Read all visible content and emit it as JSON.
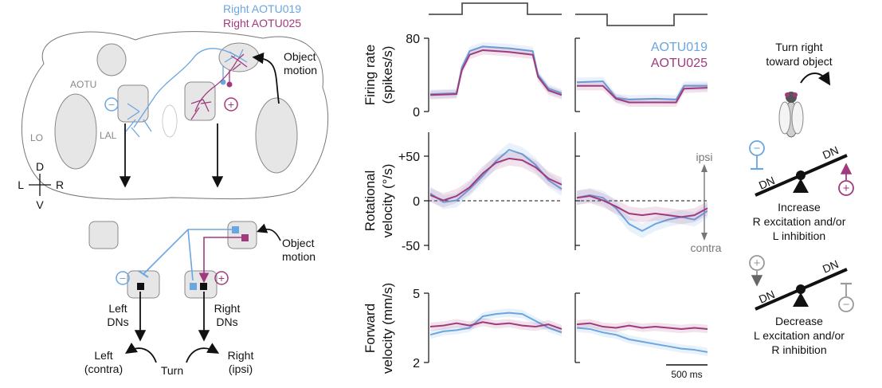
{
  "colors": {
    "aotu019": "#6aa6e0",
    "aotu025": "#a03a7d",
    "tissue": "#e6e6e6",
    "outline": "#777777",
    "grey": "#999999"
  },
  "brain": {
    "legend_aotu019": "Right AOTU019",
    "legend_aotu025": "Right AOTU025",
    "aotu": "AOTU",
    "lo": "LO",
    "lal": "LAL",
    "object_motion_1": "Object",
    "object_motion_2": "motion",
    "axis_d": "D",
    "axis_v": "V",
    "axis_l": "L",
    "axis_r": "R",
    "minus": "−",
    "plus": "+"
  },
  "circuit": {
    "object_motion_1": "Object",
    "object_motion_2": "motion",
    "left_dns_1": "Left",
    "left_dns_2": "DNs",
    "right_dns_1": "Right",
    "right_dns_2": "DNs",
    "left_contra_1": "Left",
    "left_contra_2": "(contra)",
    "turn": "Turn",
    "right_ipsi_1": "Right",
    "right_ipsi_2": "(ipsi)",
    "minus": "−",
    "plus": "+"
  },
  "chart_data": [
    {
      "type": "line",
      "panel": "firing-rate",
      "ylabel": [
        "Firing rate",
        "(spikes/s)"
      ],
      "yticks": [
        "80",
        "0"
      ],
      "ylim": [
        0,
        80
      ],
      "legend": [
        "AOTU019",
        "AOTU025"
      ],
      "legend_position": "top-right",
      "left_condition": {
        "x": [
          0,
          0.2,
          0.24,
          0.3,
          0.4,
          0.6,
          0.78,
          0.82,
          0.9,
          1.0
        ],
        "series": [
          {
            "name": "AOTU019",
            "values": [
              19,
              20,
              48,
              66,
              71,
              69,
              66,
              40,
              25,
              20
            ]
          },
          {
            "name": "AOTU025",
            "values": [
              18,
              19,
              45,
              62,
              67,
              65,
              62,
              38,
              23,
              18
            ]
          }
        ]
      },
      "right_condition": {
        "x": [
          0,
          0.2,
          0.3,
          0.4,
          0.6,
          0.76,
          0.82,
          1.0
        ],
        "series": [
          {
            "name": "AOTU019",
            "values": [
              32,
              33,
              15,
              13,
              14,
              13,
              28,
              28
            ]
          },
          {
            "name": "AOTU025",
            "values": [
              28,
              28,
              14,
              10,
              10,
              10,
              25,
              26
            ]
          }
        ]
      }
    },
    {
      "type": "line",
      "panel": "rotational-velocity",
      "ylabel": [
        "Rotational",
        "velocity (°/s)"
      ],
      "yticks": [
        "+50",
        "0",
        "-50"
      ],
      "ylim": [
        -60,
        75
      ],
      "annotation_top": "ipsi",
      "annotation_bottom": "contra",
      "left_condition": {
        "x": [
          0,
          0.1,
          0.2,
          0.3,
          0.4,
          0.5,
          0.6,
          0.7,
          0.8,
          0.9,
          1.0
        ],
        "series": [
          {
            "name": "AOTU019",
            "values": [
              5,
              -5,
              -3,
              10,
              25,
              42,
              55,
              50,
              38,
              20,
              10
            ]
          },
          {
            "name": "AOTU025",
            "values": [
              3,
              -3,
              2,
              12,
              28,
              40,
              45,
              43,
              35,
              22,
              15
            ]
          }
        ]
      },
      "right_condition": {
        "x": [
          0,
          0.1,
          0.2,
          0.3,
          0.4,
          0.5,
          0.6,
          0.7,
          0.8,
          0.9,
          1.0
        ],
        "series": [
          {
            "name": "AOTU019",
            "values": [
              0,
              3,
              0,
              -12,
              -30,
              -38,
              -30,
              -25,
              -22,
              -25,
              -15
            ]
          },
          {
            "name": "AOTU025",
            "values": [
              0,
              2,
              -3,
              -10,
              -18,
              -20,
              -18,
              -20,
              -22,
              -20,
              -12
            ]
          }
        ]
      }
    },
    {
      "type": "line",
      "panel": "forward-velocity",
      "ylabel": [
        "Forward",
        "velocity (mm/s)"
      ],
      "yticks": [
        "5",
        "2"
      ],
      "ylim": [
        2,
        5
      ],
      "scalebar": "500 ms",
      "left_condition": {
        "x": [
          0,
          0.1,
          0.2,
          0.3,
          0.4,
          0.5,
          0.6,
          0.7,
          0.8,
          0.9,
          1.0
        ],
        "series": [
          {
            "name": "AOTU019",
            "values": [
              3.2,
              3.35,
              3.4,
              3.5,
              4.0,
              4.1,
              4.15,
              4.1,
              3.8,
              3.5,
              3.3
            ]
          },
          {
            "name": "AOTU025",
            "values": [
              3.55,
              3.6,
              3.7,
              3.6,
              3.75,
              3.65,
              3.7,
              3.6,
              3.55,
              3.65,
              3.45
            ]
          }
        ]
      },
      "right_condition": {
        "x": [
          0,
          0.1,
          0.2,
          0.3,
          0.4,
          0.5,
          0.6,
          0.7,
          0.8,
          0.9,
          1.0
        ],
        "series": [
          {
            "name": "AOTU019",
            "values": [
              3.5,
              3.45,
              3.3,
              3.2,
              3.0,
              2.9,
              2.8,
              2.7,
              2.6,
              2.55,
              2.45
            ]
          },
          {
            "name": "AOTU025",
            "values": [
              3.65,
              3.7,
              3.55,
              3.5,
              3.6,
              3.5,
              3.55,
              3.5,
              3.45,
              3.5,
              3.45
            ]
          }
        ]
      }
    }
  ],
  "model": {
    "turn_1": "Turn right",
    "turn_2": "toward object",
    "dn": "DN",
    "increase_1": "Increase",
    "increase_2": "R excitation and/or",
    "increase_3": "L inhibition",
    "decrease_1": "Decrease",
    "decrease_2": "L excitation and/or",
    "decrease_3": "R inhibition",
    "minus": "−",
    "plus": "+"
  }
}
